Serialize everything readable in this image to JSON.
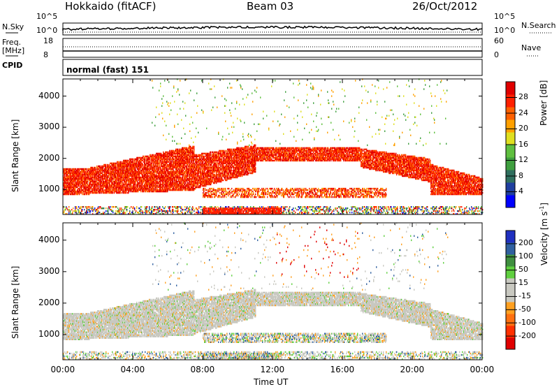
{
  "header": {
    "station": "Hokkaido (fitACF)",
    "beam": "Beam 03",
    "date": "26/Oct/2012"
  },
  "top_panels": {
    "nsky_label": "N.Sky",
    "nsky_ticks": [
      "10^5",
      "10^0"
    ],
    "nsearch_label": "N.Search",
    "nsearch_ticks": [
      "10^5",
      "10^0"
    ],
    "freq_label": "Freq.",
    "freq_unit": "[MHz]",
    "freq_ticks": [
      "18",
      "8"
    ],
    "nave_label": "Nave",
    "nave_ticks": [
      "60",
      "0"
    ],
    "cpid_label": "CPID",
    "cpid_text": "normal (fast) 151"
  },
  "chart_data": [
    {
      "type": "heatmap",
      "name_panel": "power",
      "ylabel": "Slant Range [km]",
      "ylim": [
        200,
        4550
      ],
      "yticks": [
        1000,
        2000,
        3000,
        4000
      ],
      "xlim": [
        0,
        24
      ],
      "colorbar": {
        "label": "Power [dB]",
        "ticks": [
          "4",
          "8",
          "12",
          "16",
          "20",
          "24",
          "28"
        ],
        "range": [
          0,
          32
        ],
        "colors": [
          "#0000ff",
          "#1f3f9f",
          "#2f6f5f",
          "#3f9f3f",
          "#5fbf3f",
          "#dfdf20",
          "#ffa000",
          "#ff6000",
          "#ff2000",
          "#e00000"
        ]
      }
    },
    {
      "type": "heatmap",
      "name_panel": "velocity",
      "ylabel": "Slant Range [km]",
      "ylim": [
        200,
        4550
      ],
      "yticks": [
        1000,
        2000,
        3000,
        4000
      ],
      "xlim": [
        0,
        24
      ],
      "colorbar": {
        "label": "Velocity [m s^-1]",
        "ticks": [
          "200",
          "100",
          "50",
          "15",
          "-15",
          "-50",
          "-100",
          "-200"
        ],
        "range": [
          -250,
          250
        ],
        "colors": [
          "#2030c0",
          "#3060a0",
          "#3f8f3f",
          "#5fcf3f",
          "#c8c8c0",
          "#c8c8c0",
          "#ffa020",
          "#ff7010",
          "#ff3000",
          "#e00000"
        ]
      }
    }
  ],
  "xaxis": {
    "ticks": [
      "00:00",
      "04:00",
      "08:00",
      "12:00",
      "16:00",
      "20:00",
      "00:00"
    ],
    "label": "Time UT"
  }
}
